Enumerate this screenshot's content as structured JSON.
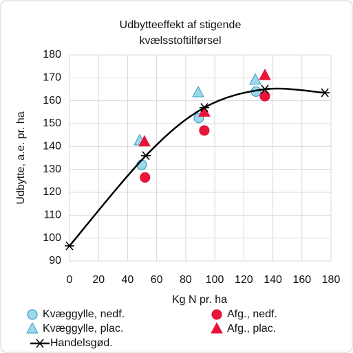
{
  "chart_data": {
    "type": "scatter",
    "title": [
      "Udbytteeffekt af stigende",
      "kvælsstoftilførsel"
    ],
    "xlabel": "Kg N pr. ha",
    "ylabel": "Udbytte, a.e. pr. ha",
    "xlim": [
      0,
      180
    ],
    "xticks": [
      0,
      20,
      40,
      60,
      80,
      100,
      120,
      140,
      160,
      180
    ],
    "ylim": [
      90,
      180
    ],
    "yticks": [
      90,
      100,
      110,
      120,
      130,
      140,
      150,
      160,
      170,
      180
    ],
    "grid": true,
    "series": [
      {
        "name": "Kvæggylle, nedf.",
        "color": "#9dd7ea",
        "marker": "circle",
        "x": [
          49.7,
          89,
          128.4
        ],
        "values": [
          132,
          152.5,
          164
        ]
      },
      {
        "name": "Afg., nedf.",
        "color": "#e8143a",
        "marker": "circle",
        "x": [
          52,
          92.8,
          134.5
        ],
        "values": [
          126.5,
          147,
          162
        ]
      },
      {
        "name": "Kvæggylle, plac.",
        "color": "#9dd7ea",
        "marker": "triangle",
        "x": [
          48.3,
          88.6,
          127.9
        ],
        "values": [
          142.5,
          163.5,
          169
        ]
      },
      {
        "name": "Afg., plac.",
        "color": "#e8143a",
        "marker": "triangle",
        "x": [
          51.6,
          92.8,
          134.5
        ],
        "values": [
          142,
          155,
          171
        ]
      },
      {
        "name": "Handelsgød.",
        "color": "#000000",
        "marker": "star",
        "line": true,
        "x": [
          0,
          52.6,
          92.8,
          134.5,
          175.8
        ],
        "values": [
          96.6,
          136,
          157,
          165,
          163.5
        ]
      }
    ]
  }
}
